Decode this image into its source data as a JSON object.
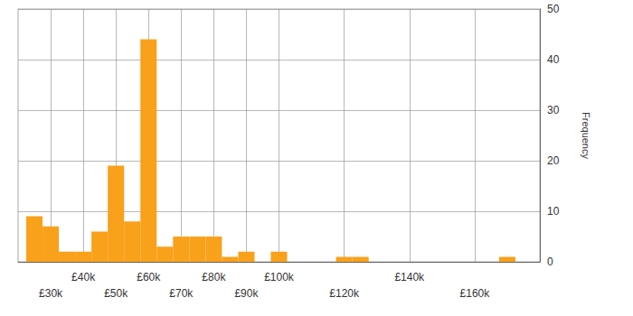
{
  "chart_data": {
    "type": "histogram",
    "y_label": "Frequency",
    "bins": [
      22500,
      27500,
      32500,
      37500,
      42500,
      47500,
      52500,
      57500,
      62500,
      67500,
      72500,
      77500,
      82500,
      87500,
      92500,
      97500,
      102500,
      107500,
      112500,
      117500,
      122500,
      127500,
      132500,
      137500,
      142500,
      147500,
      152500,
      157500,
      162500,
      167500,
      172500
    ],
    "values": [
      9,
      7,
      2,
      2,
      6,
      19,
      8,
      44,
      3,
      5,
      5,
      5,
      1,
      2,
      0,
      2,
      0,
      0,
      0,
      1,
      1,
      0,
      0,
      0,
      0,
      0,
      0,
      0,
      0,
      1
    ],
    "color": "#f9a11b",
    "xlim": [
      20000,
      180000
    ],
    "xticks": [
      {
        "value": 30000,
        "label": "£30k"
      },
      {
        "value": 40000,
        "label": "£40k"
      },
      {
        "value": 50000,
        "label": "£50k"
      },
      {
        "value": 60000,
        "label": "£60k"
      },
      {
        "value": 70000,
        "label": "£70k"
      },
      {
        "value": 80000,
        "label": "£80k"
      },
      {
        "value": 90000,
        "label": "£90k"
      },
      {
        "value": 100000,
        "label": "£100k"
      },
      {
        "value": 120000,
        "label": "£120k"
      },
      {
        "value": 140000,
        "label": "£140k"
      },
      {
        "value": 160000,
        "label": "£160k"
      }
    ],
    "ylim": [
      0,
      50
    ],
    "yticks": [
      0,
      10,
      20,
      30,
      40,
      50
    ],
    "grid": true
  }
}
